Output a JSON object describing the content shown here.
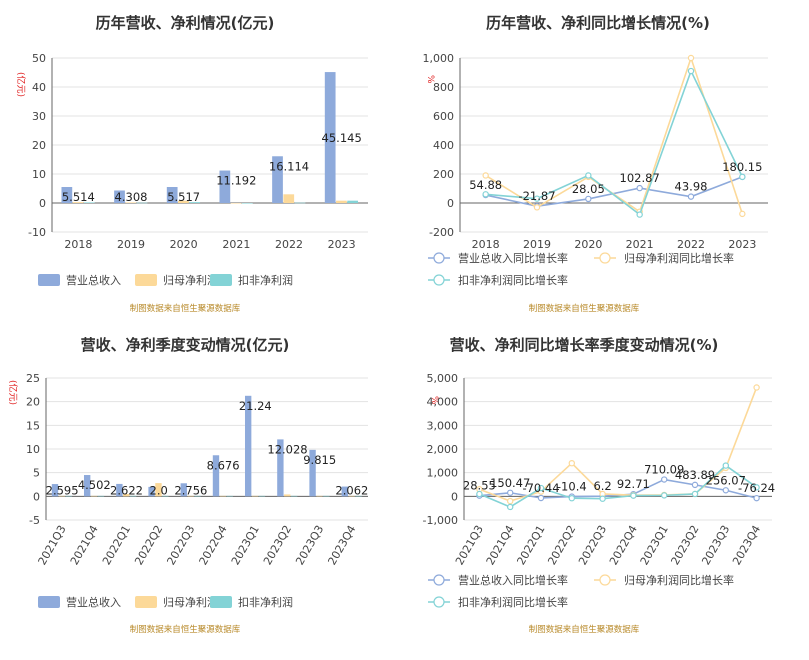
{
  "colors": {
    "revenue": "#8eaadb",
    "net_profit": "#fcd999",
    "deducted_profit": "#83d3d6",
    "grid": "#e3e3e3",
    "axis": "#666666"
  },
  "source_text": "制图数据来自恒生聚源数据库",
  "chart_data": [
    {
      "id": "annual_values",
      "type": "bar",
      "title": "历年营收、净利情况(亿元)",
      "unit_label": "(亿元)",
      "categories": [
        "2018",
        "2019",
        "2020",
        "2021",
        "2022",
        "2023"
      ],
      "series": [
        {
          "name": "营业总收入",
          "values": [
            5.514,
            4.308,
            5.517,
            11.192,
            16.114,
            45.145
          ]
        },
        {
          "name": "归母净利润",
          "values": [
            0.3,
            0.2,
            0.8,
            0.0,
            3.0,
            0.8
          ]
        },
        {
          "name": "扣非净利润",
          "values": [
            0.2,
            0.1,
            0.3,
            0.0,
            0.1,
            0.8
          ]
        }
      ],
      "data_labels": [
        "5.514",
        "4.308",
        "5.517",
        "11.192",
        "16.114",
        "45.145"
      ],
      "ylim": [
        -10,
        50
      ],
      "yticks": [
        -10,
        0,
        10,
        20,
        30,
        40,
        50
      ],
      "legend": "bottom",
      "grid": true
    },
    {
      "id": "annual_growth",
      "type": "line",
      "title": "历年营收、净利同比增长情况(%)",
      "unit_label": "%",
      "categories": [
        "2018",
        "2019",
        "2020",
        "2021",
        "2022",
        "2023"
      ],
      "series": [
        {
          "name": "营业总收入同比增长率",
          "values": [
            54.88,
            -21.87,
            28.05,
            102.87,
            43.98,
            180.15
          ]
        },
        {
          "name": "归母净利润同比增长率",
          "values": [
            190,
            -30,
            180,
            -60,
            1000,
            -75
          ]
        },
        {
          "name": "扣非净利润同比增长率",
          "values": [
            60,
            30,
            190,
            -80,
            910,
            180
          ]
        }
      ],
      "data_labels": [
        "54.88",
        "-21.87",
        "28.05",
        "102.87",
        "43.98",
        "180.15"
      ],
      "ylim": [
        -200,
        1000
      ],
      "yticks": [
        -200,
        0,
        200,
        400,
        600,
        800,
        1000
      ],
      "ytick_labels": [
        "-200",
        "0",
        "200",
        "400",
        "600",
        "800",
        "1,000"
      ],
      "legend": "bottom",
      "grid": true
    },
    {
      "id": "quarterly_values",
      "type": "bar",
      "title": "营收、净利季度变动情况(亿元)",
      "unit_label": "(亿元)",
      "categories": [
        "2021Q3",
        "2021Q4",
        "2022Q1",
        "2022Q2",
        "2022Q3",
        "2022Q4",
        "2023Q1",
        "2023Q2",
        "2023Q3",
        "2023Q4"
      ],
      "series": [
        {
          "name": "营业总收入",
          "values": [
            2.595,
            4.502,
            2.622,
            2.0,
            2.756,
            8.676,
            21.24,
            12.028,
            9.815,
            2.062
          ]
        },
        {
          "name": "归母净利润",
          "values": [
            0.1,
            0.1,
            0.5,
            2.8,
            0.1,
            0.1,
            0.1,
            0.4,
            0.1,
            0.1
          ]
        },
        {
          "name": "扣非净利润",
          "values": [
            0.1,
            0.1,
            0.1,
            0.1,
            0.1,
            0.1,
            0.1,
            0.1,
            0.1,
            0.1
          ]
        }
      ],
      "data_labels": [
        "2.595",
        "4.502",
        "2.622",
        "2.0",
        "2.756",
        "8.676",
        "21.24",
        "12.028",
        "9.815",
        "2.062"
      ],
      "ylim": [
        -5,
        25
      ],
      "yticks": [
        -5,
        0,
        5,
        10,
        15,
        20,
        25
      ],
      "legend": "bottom",
      "grid": true
    },
    {
      "id": "quarterly_growth",
      "type": "line",
      "title": "营收、净利同比增长率季度变动情况(%)",
      "unit_label": "%",
      "categories": [
        "2021Q3",
        "2021Q4",
        "2022Q1",
        "2022Q2",
        "2022Q3",
        "2022Q4",
        "2023Q1",
        "2023Q2",
        "2023Q3",
        "2023Q4"
      ],
      "series": [
        {
          "name": "营业总收入同比增长率",
          "values": [
            28.55,
            150.47,
            -70.44,
            -10.4,
            6.2,
            92.71,
            710.09,
            483.89,
            256.07,
            -76.24
          ]
        },
        {
          "name": "归母净利润同比增长率",
          "values": [
            300,
            -200,
            200,
            1400,
            100,
            50,
            60,
            100,
            1200,
            4600
          ]
        },
        {
          "name": "扣非净利润同比增长率",
          "values": [
            100,
            -450,
            350,
            -80,
            -100,
            30,
            40,
            100,
            1300,
            380
          ]
        }
      ],
      "data_labels": [
        "28.55",
        "150.47",
        "-70.44",
        "-10.4",
        "6.2",
        "92.71",
        "710.09",
        "483.89",
        "256.07",
        "-76.24"
      ],
      "ylim": [
        -1000,
        5000
      ],
      "yticks": [
        -1000,
        0,
        1000,
        2000,
        3000,
        4000,
        5000
      ],
      "ytick_labels": [
        "-1,000",
        "0",
        "1,000",
        "2,000",
        "3,000",
        "4,000",
        "5,000"
      ],
      "legend": "bottom",
      "grid": true
    }
  ]
}
